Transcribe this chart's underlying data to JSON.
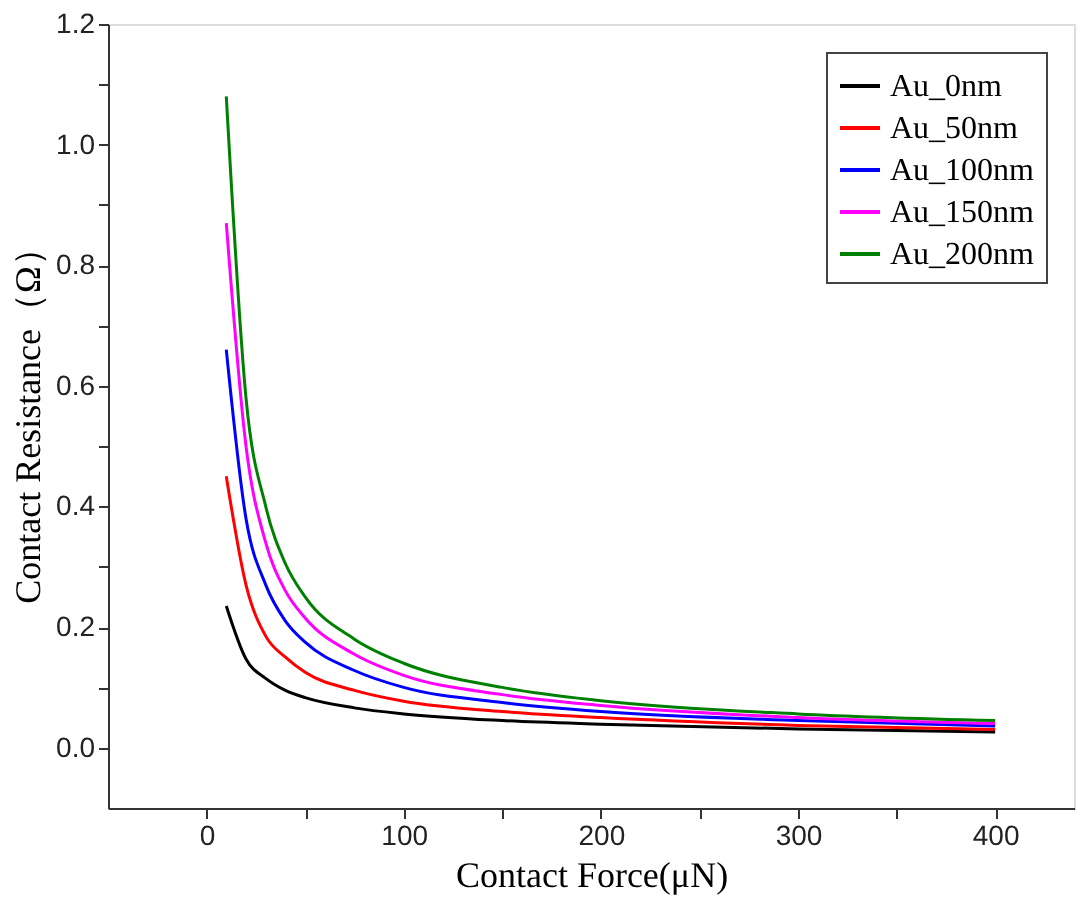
{
  "chart_data": {
    "type": "line",
    "xlabel": "Contact Force(μN)",
    "ylabel": "Contact Resistance（Ω）",
    "x": [
      10,
      20,
      30,
      40,
      50,
      75,
      100,
      150,
      200,
      300,
      400
    ],
    "series": [
      {
        "name": "Au_0nm",
        "color": "#000000",
        "values": [
          0.235,
          0.147,
          0.115,
          0.095,
          0.083,
          0.066,
          0.056,
          0.045,
          0.039,
          0.031,
          0.026
        ]
      },
      {
        "name": "Au_50nm",
        "color": "#ff0000",
        "values": [
          0.45,
          0.27,
          0.185,
          0.15,
          0.125,
          0.095,
          0.077,
          0.06,
          0.05,
          0.037,
          0.03
        ]
      },
      {
        "name": "Au_100nm",
        "color": "#0000ff",
        "values": [
          0.66,
          0.38,
          0.27,
          0.21,
          0.175,
          0.128,
          0.1,
          0.075,
          0.06,
          0.045,
          0.036
        ]
      },
      {
        "name": "Au_150nm",
        "color": "#ff00ff",
        "values": [
          0.87,
          0.5,
          0.34,
          0.26,
          0.215,
          0.155,
          0.12,
          0.088,
          0.07,
          0.05,
          0.04
        ]
      },
      {
        "name": "Au_200nm",
        "color": "#008000",
        "values": [
          1.08,
          0.58,
          0.4,
          0.305,
          0.25,
          0.18,
          0.14,
          0.1,
          0.078,
          0.056,
          0.045
        ]
      }
    ],
    "xlim": [
      -50,
      440
    ],
    "xticks": [
      0,
      {
        "value": 50,
        "label": null
      },
      100,
      {
        "value": 150,
        "label": null
      },
      200,
      {
        "value": 250,
        "label": null
      },
      300,
      {
        "value": 350,
        "label": null
      },
      400
    ],
    "ylim": [
      -0.1,
      1.2
    ],
    "yticks": [
      {
        "value": 0,
        "label": "0.0"
      },
      {
        "value": 0.1,
        "label": null
      },
      0.2,
      {
        "value": 0.3,
        "label": null
      },
      0.4,
      {
        "value": 0.5,
        "label": null
      },
      0.6,
      {
        "value": 0.7,
        "label": null
      },
      0.8,
      {
        "value": 0.9,
        "label": null
      },
      {
        "value": 1.0,
        "label": "1.0"
      },
      {
        "value": 1.1,
        "label": null
      },
      1.2
    ],
    "legend": "top right",
    "grid": false,
    "marker": "none",
    "line_style": "solid"
  }
}
